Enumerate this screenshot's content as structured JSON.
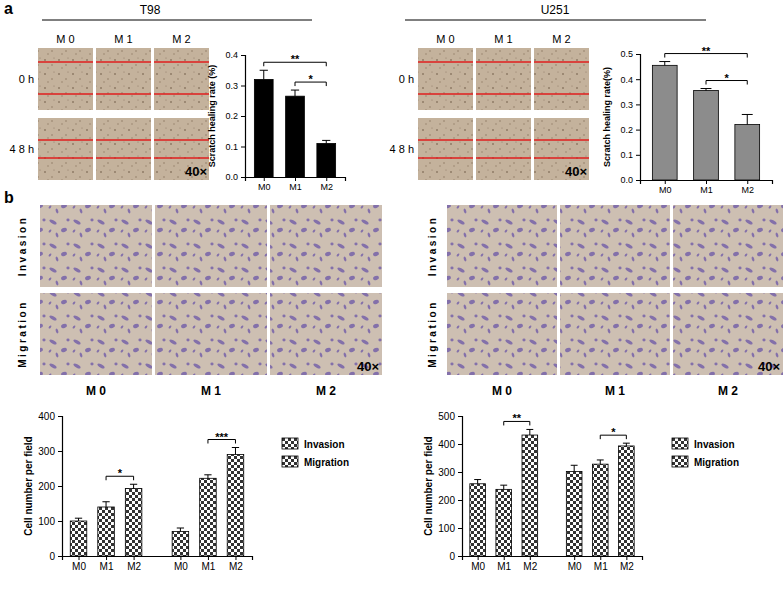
{
  "figure": {
    "panel_labels": [
      "a",
      "b"
    ],
    "scratch": [
      {
        "title": "T98",
        "columns": [
          "M 0",
          "M 1",
          "M 2"
        ],
        "rows": [
          "0 h",
          "4 8 h"
        ],
        "magnification": "40×"
      },
      {
        "title": "U251",
        "columns": [
          "M 0",
          "M 1",
          "M 2"
        ],
        "rows": [
          "0 h",
          "4 8 h"
        ],
        "magnification": "40×"
      }
    ],
    "transwell": [
      {
        "rows": [
          "Invasion",
          "Migration"
        ],
        "columns": [
          "M 0",
          "M 1",
          "M 2"
        ],
        "magnification": "40×"
      },
      {
        "rows": [
          "Invasion",
          "Migration"
        ],
        "columns": [
          "M 0",
          "M 1",
          "M 2"
        ],
        "magnification": "40×"
      }
    ]
  },
  "chart_data": [
    {
      "type": "bar",
      "categories": [
        "M0",
        "M1",
        "M2"
      ],
      "values": [
        0.32,
        0.265,
        0.11
      ],
      "errors": [
        0.03,
        0.02,
        0.01
      ],
      "color": "#000000",
      "ylabel": "Scratch healing rate (%)",
      "ylim": [
        0,
        0.4
      ],
      "yticks": [
        {
          "value": 0,
          "label": "0.0"
        },
        0.1,
        0.2,
        0.3,
        0.4
      ],
      "annotations": [
        {
          "text": "**",
          "from": 0,
          "to": 2
        },
        {
          "text": "*",
          "from": 1,
          "to": 2
        }
      ]
    },
    {
      "type": "bar",
      "categories": [
        "M0",
        "M1",
        "M2"
      ],
      "values": [
        0.455,
        0.355,
        0.22
      ],
      "errors": [
        0.015,
        0.008,
        0.04
      ],
      "color": "#8c8c8c",
      "ylabel": "Scratch healing rate(%)",
      "ylim": [
        0,
        0.5
      ],
      "yticks": [
        {
          "value": 0,
          "label": "0.0"
        },
        0.1,
        0.2,
        0.3,
        0.4,
        0.5
      ],
      "annotations": [
        {
          "text": "**",
          "from": 0,
          "to": 2
        },
        {
          "text": "*",
          "from": 1,
          "to": 2
        }
      ]
    },
    {
      "type": "bar",
      "categories": [
        "M0",
        "M1",
        "M2",
        "M0",
        "M1",
        "M2"
      ],
      "series": [
        {
          "name": "Invasion",
          "color": "#333333",
          "values": [
            100,
            140,
            193,
            null,
            null,
            null
          ],
          "errors": [
            8,
            15,
            12,
            null,
            null,
            null
          ]
        },
        {
          "name": "Migration",
          "color": "#333333",
          "values": [
            null,
            null,
            null,
            70,
            222,
            290
          ],
          "errors": [
            null,
            null,
            null,
            10,
            10,
            20
          ]
        }
      ],
      "ylabel": "Cell number per field",
      "ylim": [
        0,
        400
      ],
      "yticks": [
        0,
        100,
        200,
        300,
        400
      ],
      "legend": "right",
      "annotations": [
        {
          "text": "*",
          "from": 1,
          "to": 2
        },
        {
          "text": "***",
          "from": 4,
          "to": 5
        }
      ]
    },
    {
      "type": "bar",
      "categories": [
        "M0",
        "M1",
        "M2",
        "M0",
        "M1",
        "M2"
      ],
      "series": [
        {
          "name": "Invasion",
          "color": "#333333",
          "values": [
            258,
            238,
            432,
            null,
            null,
            null
          ],
          "errors": [
            15,
            15,
            20,
            null,
            null,
            null
          ]
        },
        {
          "name": "Migration",
          "color": "#333333",
          "values": [
            null,
            null,
            null,
            302,
            328,
            393
          ],
          "errors": [
            null,
            null,
            null,
            22,
            15,
            10
          ]
        }
      ],
      "ylabel": "Cell number per field",
      "ylim": [
        0,
        500
      ],
      "yticks": [
        0,
        100,
        200,
        300,
        400,
        500
      ],
      "legend": "right",
      "annotations": [
        {
          "text": "**",
          "from": 1,
          "to": 2
        },
        {
          "text": "*",
          "from": 4,
          "to": 5
        }
      ]
    }
  ]
}
